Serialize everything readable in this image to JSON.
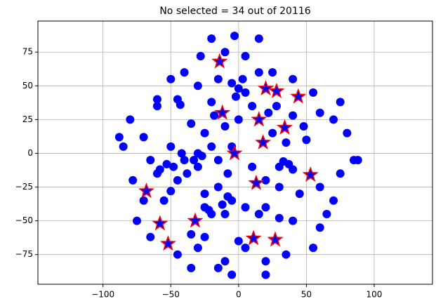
{
  "chart_data": {
    "type": "scatter",
    "title": "No selected = 34 out of 20116",
    "xlim": [
      -148,
      143
    ],
    "ylim": [
      -97,
      98
    ],
    "xticks": [
      {
        "value": -100,
        "label": "−100"
      },
      {
        "value": -50,
        "label": "−50"
      },
      0,
      50,
      100
    ],
    "yticks": [
      {
        "value": -75,
        "label": "−75"
      },
      {
        "value": -50,
        "label": "−50"
      },
      {
        "value": -25,
        "label": "−25"
      },
      0,
      25,
      50,
      75
    ],
    "grid": true,
    "series": [
      {
        "color": "#0000ff",
        "marker": "circle",
        "x": [
          0,
          -5,
          5,
          -45,
          -43,
          -20,
          -18,
          -10,
          0,
          -25,
          -35,
          -50,
          -40,
          -30,
          -38,
          -45,
          -15,
          -20,
          -5,
          10,
          22,
          28,
          40,
          48,
          50,
          35,
          25,
          37,
          40,
          60,
          70,
          75,
          -70,
          -65,
          -60,
          -50,
          -55,
          -25,
          -15,
          -5,
          -10,
          -20,
          -25,
          5,
          15,
          20,
          30,
          40,
          -35,
          -25,
          -30,
          5,
          0,
          -10,
          -15,
          20,
          35,
          -20,
          -3,
          15,
          -28,
          -10,
          5,
          25,
          -60,
          -80,
          -85,
          -78,
          -70,
          -75,
          -65,
          -45,
          65,
          60,
          70,
          85,
          80,
          75,
          55,
          60,
          45,
          30,
          20,
          10,
          -8,
          -30,
          -60,
          -50,
          -40,
          -30,
          -15,
          15,
          40,
          55,
          -5,
          20,
          88,
          -88,
          -35,
          -2,
          3,
          -48,
          -42,
          -33,
          -27,
          -12,
          -8,
          -22,
          30,
          33,
          -58,
          -53
        ],
        "y": [
          48,
          52,
          45,
          40,
          36,
          38,
          28,
          20,
          25,
          15,
          22,
          5,
          -5,
          -10,
          -15,
          -20,
          -5,
          5,
          5,
          35,
          30,
          35,
          28,
          20,
          10,
          8,
          15,
          -8,
          -12,
          30,
          25,
          -15,
          12,
          -5,
          -15,
          -28,
          -35,
          -30,
          -25,
          -35,
          -45,
          -45,
          -40,
          -40,
          -45,
          -40,
          -48,
          -50,
          -60,
          -62,
          -70,
          -70,
          -65,
          -80,
          -85,
          -80,
          -75,
          85,
          87,
          85,
          72,
          75,
          72,
          60,
          35,
          25,
          5,
          -20,
          -35,
          -50,
          -62,
          -75,
          -45,
          -55,
          -35,
          -5,
          15,
          38,
          45,
          -25,
          -30,
          -25,
          -20,
          -10,
          -15,
          0,
          40,
          55,
          60,
          50,
          55,
          60,
          55,
          -70,
          -90,
          -90,
          -5,
          12,
          -85,
          42,
          55,
          -10,
          0,
          -5,
          -2,
          -38,
          -32,
          -42,
          -10,
          -6,
          -12,
          -8
        ]
      },
      {
        "color": "#0000ff",
        "edgecolor": "#ff0000",
        "marker": "star",
        "x": [
          -14,
          20,
          44,
          -12,
          15,
          34,
          18,
          -3,
          53,
          -68,
          13,
          -58,
          -32,
          -52,
          11,
          27,
          28
        ],
        "y": [
          68,
          48,
          42,
          30,
          25,
          19,
          8,
          0,
          -16,
          -28,
          -22,
          -52,
          -50,
          -67,
          -63,
          -64,
          46
        ]
      }
    ]
  }
}
